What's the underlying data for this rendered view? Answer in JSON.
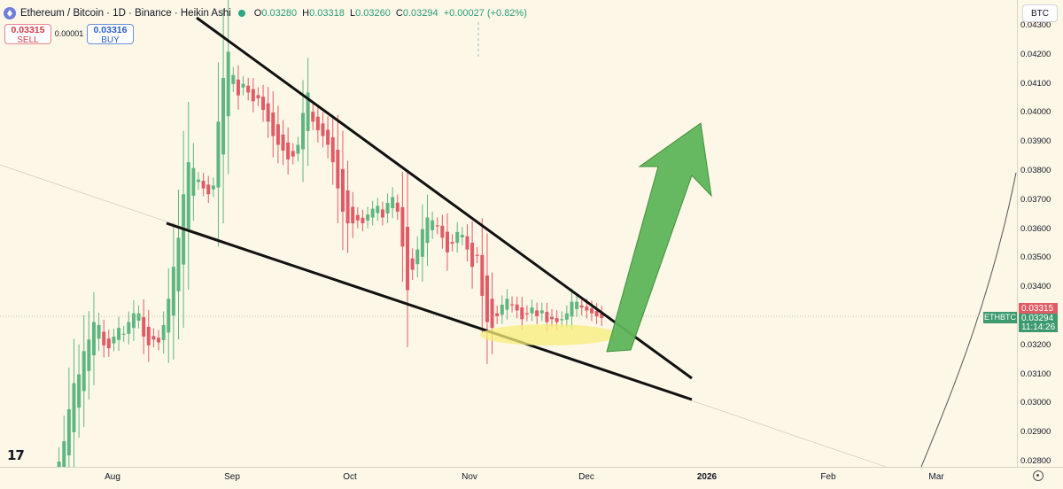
{
  "header": {
    "title": "Ethereum / Bitcoin · 1D · Binance · Heikin Ashi",
    "ohlc": [
      {
        "k": "O",
        "v": "0.03280"
      },
      {
        "k": "H",
        "v": "0.03318"
      },
      {
        "k": "L",
        "v": "0.03260"
      },
      {
        "k": "C",
        "v": "0.03294"
      }
    ],
    "change": "+0.00027 (+0.82%)"
  },
  "trade": {
    "sell_price": "0.03315",
    "sell_label": "SELL",
    "spread": "0.00001",
    "buy_price": "0.03316",
    "buy_label": "BUY"
  },
  "currency": "BTC",
  "symbol_tag": "ETHBTC",
  "price_tags": {
    "ask": "0.03315",
    "last": "0.03294",
    "countdown": "11:14:26"
  },
  "colors": {
    "up": "#5fb681",
    "down": "#e05b66",
    "background": "#fdf7e8",
    "arrow": "#5fb55a",
    "highlight": "#f7ed7a"
  },
  "icons": [
    "tradingview-logo-icon",
    "settings-gear-icon",
    "eth-logo-icon",
    "market-status-dot-icon"
  ],
  "chart_data": {
    "type": "candlestick",
    "style": "Heikin Ashi",
    "x_ticks": [
      "Aug",
      "Sep",
      "Oct",
      "Nov",
      "Dec",
      "2026",
      "Feb",
      "Mar"
    ],
    "y_ticks": [
      "0.04300",
      "0.04200",
      "0.04100",
      "0.04000",
      "0.03900",
      "0.03800",
      "0.03700",
      "0.03600",
      "0.03500",
      "0.03400",
      "0.03300",
      "0.03200",
      "0.03100",
      "0.03000",
      "0.02900",
      "0.02800"
    ],
    "ylim": [
      0.0278,
      0.043
    ],
    "closes": [
      0.0275,
      0.028,
      0.0287,
      0.0298,
      0.0307,
      0.031,
      0.0318,
      0.0322,
      0.0328,
      0.0327,
      0.032,
      0.0319,
      0.0323,
      0.0326,
      0.0324,
      0.0328,
      0.0331,
      0.0331,
      0.0323,
      0.032,
      0.0322,
      0.0321,
      0.0327,
      0.0336,
      0.0347,
      0.0357,
      0.0372,
      0.0383,
      0.0381,
      0.0377,
      0.0374,
      0.0372,
      0.0375,
      0.0397,
      0.0412,
      0.0421,
      0.0413,
      0.0406,
      0.041,
      0.0407,
      0.0404,
      0.0405,
      0.0401,
      0.0397,
      0.0392,
      0.0389,
      0.0387,
      0.0384,
      0.0385,
      0.0389,
      0.04,
      0.0407,
      0.0397,
      0.0394,
      0.0392,
      0.0389,
      0.0383,
      0.0374,
      0.0366,
      0.0362,
      0.0362,
      0.0363,
      0.0362,
      0.0365,
      0.0367,
      0.0368,
      0.0364,
      0.0369,
      0.0371,
      0.0366,
      0.0354,
      0.0339,
      0.0346,
      0.0353,
      0.036,
      0.0364,
      0.0363,
      0.0361,
      0.0357,
      0.0352,
      0.0355,
      0.0359,
      0.0358,
      0.0353,
      0.0347,
      0.0351,
      0.0337,
      0.0328,
      0.0326,
      0.033,
      0.0334,
      0.0336,
      0.0334,
      0.0332,
      0.0329,
      0.0331,
      0.0333,
      0.033,
      0.0332,
      0.0328,
      0.0329,
      0.0328,
      0.0329,
      0.0331,
      0.0335,
      0.0335,
      0.0333,
      0.0332,
      0.0331,
      0.033,
      0.03294
    ],
    "overlays": [
      {
        "type": "trendline",
        "label": "upper wedge line",
        "from": {
          "bar": 36,
          "price": 0.0431
        },
        "to": {
          "date": "2025-12-19",
          "price": 0.0311
        }
      },
      {
        "type": "trendline",
        "label": "lower wedge line",
        "from": {
          "bar": 26,
          "price": 0.0362
        },
        "to": {
          "date": "2025-12-18",
          "price": 0.0301
        }
      },
      {
        "type": "arrow",
        "direction": "up",
        "from": {
          "date": "2025-12-05",
          "price": 0.032
        },
        "to": {
          "date": "2025-12-18",
          "price": 0.0396
        }
      },
      {
        "type": "ellipse",
        "label": "support zone",
        "center": {
          "date": "2025-11-21",
          "price": 0.0324
        }
      },
      {
        "type": "curve",
        "label": "long-term curve"
      }
    ],
    "grid": false,
    "legend": "none"
  }
}
